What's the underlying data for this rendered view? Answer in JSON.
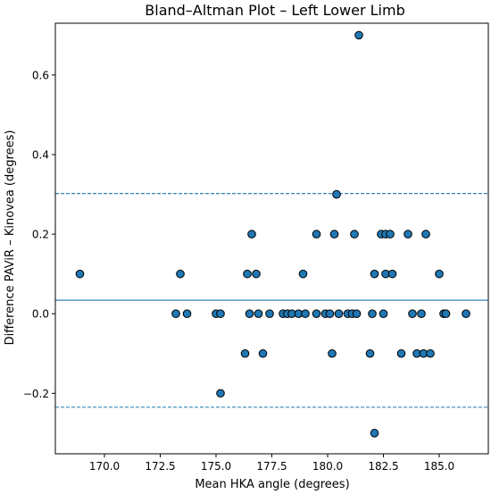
{
  "chart_data": {
    "type": "scatter",
    "title": "Bland–Altman Plot – Left Lower Limb",
    "xlabel": "Mean HKA angle (degrees)",
    "ylabel": "Difference PAViR – Kinovea (degrees)",
    "xlim": [
      167.8,
      187.2
    ],
    "ylim": [
      -0.352,
      0.73
    ],
    "xticks": [
      170.0,
      172.5,
      175.0,
      177.5,
      180.0,
      182.5,
      185.0
    ],
    "xtick_labels": [
      "170.0",
      "172.5",
      "175.0",
      "177.5",
      "180.0",
      "182.5",
      "185.0"
    ],
    "yticks": [
      -0.2,
      0.0,
      0.2,
      0.4,
      0.6
    ],
    "ytick_labels": [
      "−0.2",
      "0.0",
      "0.2",
      "0.4",
      "0.6"
    ],
    "grid": false,
    "lines": [
      {
        "kind": "mean",
        "y": 0.034,
        "style": "solid"
      },
      {
        "kind": "upper_loa",
        "y": 0.302,
        "style": "dashed"
      },
      {
        "kind": "lower_loa",
        "y": -0.235,
        "style": "dashed"
      }
    ],
    "colors": {
      "points": "#1f77b4",
      "edge": "#000000",
      "lines": "#1f77b4"
    },
    "points": [
      {
        "x": 168.9,
        "y": 0.1
      },
      {
        "x": 173.2,
        "y": 0.0
      },
      {
        "x": 173.4,
        "y": 0.1
      },
      {
        "x": 173.7,
        "y": 0.0
      },
      {
        "x": 175.0,
        "y": 0.0
      },
      {
        "x": 175.2,
        "y": 0.0
      },
      {
        "x": 175.2,
        "y": -0.2
      },
      {
        "x": 176.3,
        "y": -0.1
      },
      {
        "x": 176.4,
        "y": 0.1
      },
      {
        "x": 176.5,
        "y": 0.0
      },
      {
        "x": 176.6,
        "y": 0.2
      },
      {
        "x": 176.8,
        "y": 0.1
      },
      {
        "x": 176.9,
        "y": 0.0
      },
      {
        "x": 177.1,
        "y": -0.1
      },
      {
        "x": 177.4,
        "y": 0.0
      },
      {
        "x": 178.0,
        "y": 0.0
      },
      {
        "x": 178.2,
        "y": 0.0
      },
      {
        "x": 178.4,
        "y": 0.0
      },
      {
        "x": 178.7,
        "y": 0.0
      },
      {
        "x": 178.9,
        "y": 0.1
      },
      {
        "x": 179.0,
        "y": 0.0
      },
      {
        "x": 179.5,
        "y": 0.0
      },
      {
        "x": 179.5,
        "y": 0.2
      },
      {
        "x": 179.9,
        "y": 0.0
      },
      {
        "x": 180.1,
        "y": 0.0
      },
      {
        "x": 180.2,
        "y": -0.1
      },
      {
        "x": 180.3,
        "y": 0.2
      },
      {
        "x": 180.4,
        "y": 0.3
      },
      {
        "x": 180.5,
        "y": 0.0
      },
      {
        "x": 180.9,
        "y": 0.0
      },
      {
        "x": 181.1,
        "y": 0.0
      },
      {
        "x": 181.2,
        "y": 0.2
      },
      {
        "x": 181.3,
        "y": 0.0
      },
      {
        "x": 181.4,
        "y": 0.7
      },
      {
        "x": 181.9,
        "y": -0.1
      },
      {
        "x": 182.0,
        "y": 0.0
      },
      {
        "x": 182.1,
        "y": 0.1
      },
      {
        "x": 182.1,
        "y": -0.3
      },
      {
        "x": 182.4,
        "y": 0.2
      },
      {
        "x": 182.5,
        "y": 0.0
      },
      {
        "x": 182.6,
        "y": 0.2
      },
      {
        "x": 182.6,
        "y": 0.1
      },
      {
        "x": 182.8,
        "y": 0.2
      },
      {
        "x": 182.9,
        "y": 0.1
      },
      {
        "x": 183.3,
        "y": -0.1
      },
      {
        "x": 183.6,
        "y": 0.2
      },
      {
        "x": 183.8,
        "y": 0.0
      },
      {
        "x": 184.0,
        "y": -0.1
      },
      {
        "x": 184.2,
        "y": 0.0
      },
      {
        "x": 184.3,
        "y": -0.1
      },
      {
        "x": 184.4,
        "y": 0.2
      },
      {
        "x": 184.6,
        "y": -0.1
      },
      {
        "x": 185.0,
        "y": 0.1
      },
      {
        "x": 185.2,
        "y": 0.0
      },
      {
        "x": 185.3,
        "y": 0.0
      },
      {
        "x": 186.2,
        "y": 0.0
      }
    ]
  }
}
